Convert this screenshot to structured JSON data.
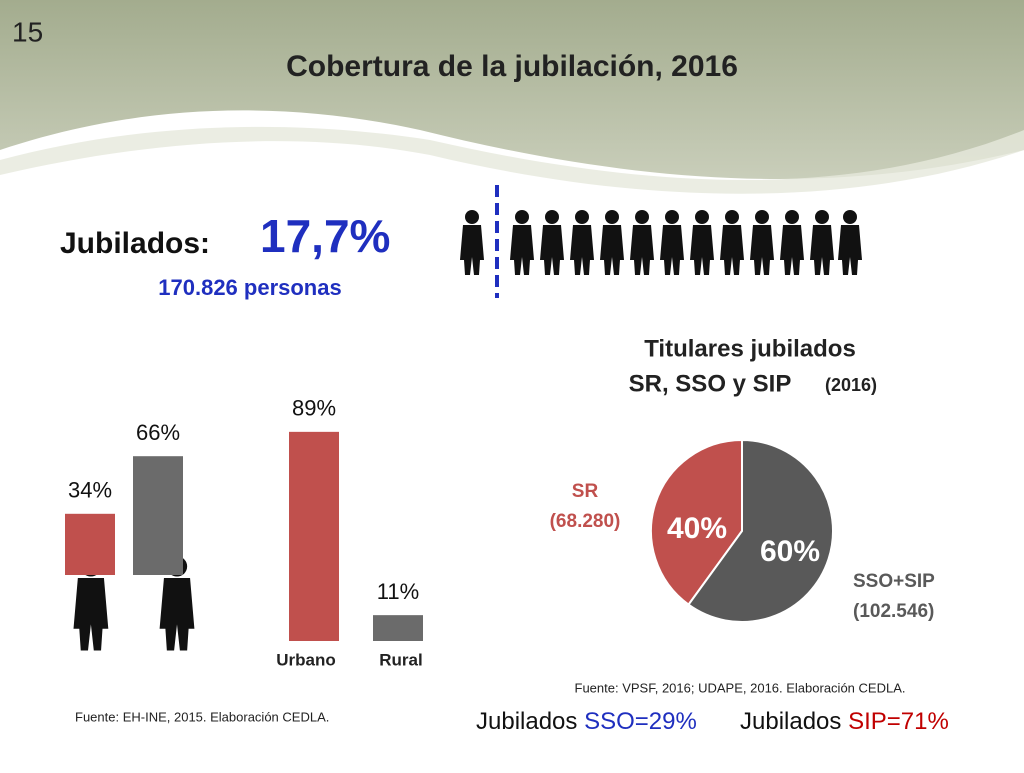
{
  "slide_number": "15",
  "title": "Cobertura de la jubilación, 2016",
  "headline": {
    "label": "Jubilados:",
    "value": "17,7%",
    "persons": "170.826 personas"
  },
  "chart_data": [
    {
      "type": "bar",
      "values": [
        34,
        66
      ],
      "value_labels": [
        "34%",
        "66%"
      ],
      "colors": [
        "#c0504d",
        "#6b6b6b"
      ]
    },
    {
      "type": "bar",
      "categories": [
        "Urbano",
        "Rural"
      ],
      "values": [
        89,
        11
      ],
      "value_labels": [
        "89%",
        "11%"
      ],
      "colors": [
        "#c0504d",
        "#6b6b6b"
      ],
      "source": "Fuente: EH-INE, 2015. Elaboración CEDLA."
    },
    {
      "type": "pie",
      "title": "Titulares jubilados",
      "subtitle": "SR, SSO y SIP",
      "subtitle_year": "(2016)",
      "categories": [
        "SR",
        "SSO+SIP"
      ],
      "count_labels": [
        "(68.280)",
        "(102.546)"
      ],
      "values": [
        40,
        60
      ],
      "value_labels": [
        "40%",
        "60%"
      ],
      "colors": [
        "#c0504d",
        "#595959"
      ],
      "label_colors": [
        "#c0504d",
        "#595959"
      ],
      "source": "Fuente: VPSF, 2016; UDAPE, 2016. Elaboración CEDLA."
    }
  ],
  "footer": [
    {
      "prefix": "Jubilados",
      "highlight": "SSO=29%",
      "color": "#1f2fbf"
    },
    {
      "prefix": "Jubilados",
      "highlight": "SIP=71%",
      "color": "#c00000"
    }
  ]
}
